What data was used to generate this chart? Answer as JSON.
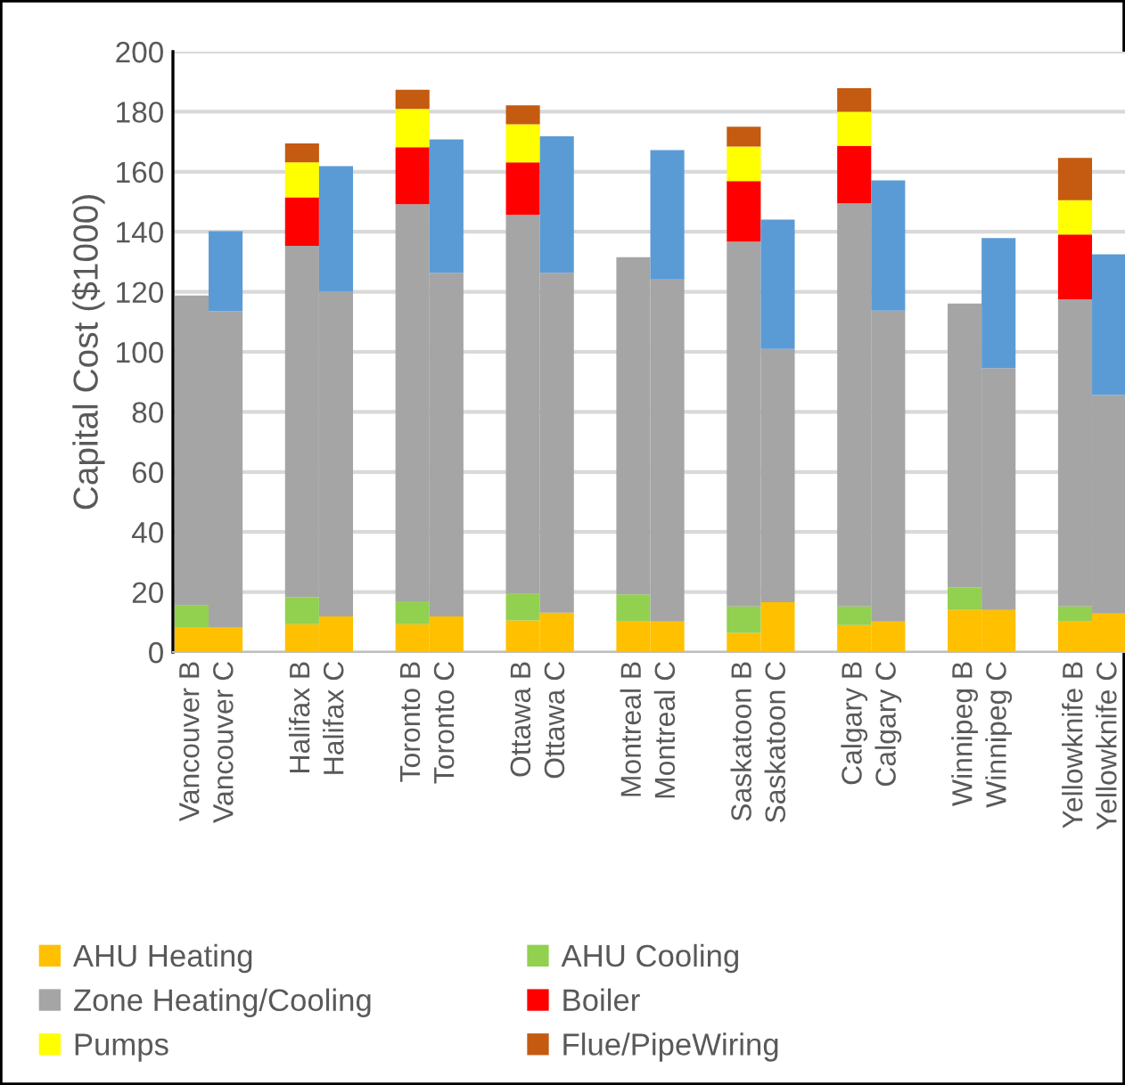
{
  "chart_data": {
    "type": "bar",
    "stacked": true,
    "ylabel": "Capital Cost ($1000)",
    "categories": [
      "Vancouver B",
      "Vancouver C",
      "Halifax B",
      "Halifax C",
      "Toronto B",
      "Toronto C",
      "Ottawa B",
      "Ottawa C",
      "Montreal B",
      "Montreal C",
      "Saskatoon B",
      "Saskatoon C",
      "Calgary B",
      "Calgary C",
      "Winnipeg B",
      "Winnipeg C",
      "Yellowknife B",
      "Yellowknife C"
    ],
    "series": [
      {
        "name": "AHU Heating",
        "color": "#ffc000",
        "values": [
          8.3,
          8.3,
          9.3,
          11.9,
          9.3,
          11.9,
          10.5,
          13.1,
          10.2,
          10.2,
          6.4,
          16.6,
          9.0,
          10.2,
          14.0,
          14.0,
          10.2,
          12.8
        ]
      },
      {
        "name": "AHU Cooling",
        "color": "#92d050",
        "values": [
          7.2,
          null,
          9.0,
          null,
          7.6,
          null,
          9.0,
          null,
          9.0,
          null,
          8.8,
          null,
          6.2,
          null,
          7.6,
          null,
          5.0,
          null
        ]
      },
      {
        "name": "Zone Heating/Cooling",
        "color": "#a5a5a5",
        "values": [
          103.3,
          105.3,
          117.0,
          108.1,
          132.3,
          114.4,
          126.1,
          113.2,
          112.3,
          113.9,
          121.5,
          84.4,
          134.3,
          103.5,
          94.5,
          80.6,
          102.3,
          72.8
        ]
      },
      {
        "name": "Boiler",
        "color": "#ff0000",
        "values": [
          null,
          null,
          16.2,
          null,
          19.0,
          null,
          17.5,
          null,
          null,
          null,
          20.2,
          null,
          19.1,
          null,
          null,
          null,
          21.6,
          null
        ]
      },
      {
        "name": "Pumps",
        "color": "#ffff00",
        "values": [
          null,
          null,
          11.6,
          null,
          12.7,
          null,
          12.7,
          null,
          null,
          null,
          11.5,
          null,
          11.4,
          null,
          null,
          null,
          11.4,
          null
        ]
      },
      {
        "name": "Flue/PipeWiring",
        "color": "#c55a11",
        "values": [
          null,
          null,
          6.3,
          null,
          6.4,
          null,
          6.3,
          null,
          null,
          null,
          6.6,
          null,
          7.8,
          null,
          null,
          null,
          14.1,
          null
        ]
      },
      {
        "color": "#5b9bd5",
        "values": [
          null,
          26.6,
          null,
          41.9,
          null,
          44.5,
          null,
          45.5,
          null,
          43.1,
          null,
          43.1,
          null,
          43.4,
          null,
          43.3,
          null,
          46.9
        ]
      }
    ],
    "ylim": [
      0,
      200
    ],
    "yticks": [
      0,
      20,
      40,
      60,
      80,
      100,
      120,
      140,
      160,
      180,
      200
    ],
    "grid": "y",
    "legend": "bottom"
  }
}
